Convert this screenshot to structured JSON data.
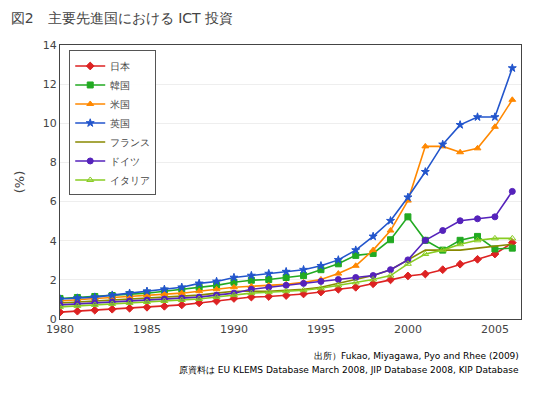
{
  "chart_data": {
    "type": "line",
    "title": "図2　主要先進国における ICT 投資",
    "ylabel": "(%)",
    "annotations": [
      "出所）Fukao, Miyagawa, Pyo and Rhee (2009)",
      "原資料は EU KLEMS Database March 2008, JIP Database 2008, KIP Database"
    ],
    "x": [
      1980,
      1981,
      1982,
      1983,
      1984,
      1985,
      1986,
      1987,
      1988,
      1989,
      1990,
      1991,
      1992,
      1993,
      1994,
      1995,
      1996,
      1997,
      1998,
      1999,
      2000,
      2001,
      2002,
      2003,
      2004,
      2005,
      2006
    ],
    "xlim": [
      1980,
      2006.5
    ],
    "xticks": [
      1980,
      1985,
      1990,
      1995,
      2000,
      2005
    ],
    "ylim": [
      0,
      14
    ],
    "yticks": [
      0,
      2,
      4,
      6,
      8,
      10,
      12,
      14
    ],
    "grid": "y",
    "legend": "upper left",
    "series": [
      {
        "name": "日本",
        "color": "#dd2222",
        "marker": "diamond",
        "line_style": "solid",
        "values": [
          0.35,
          0.4,
          0.45,
          0.5,
          0.55,
          0.6,
          0.65,
          0.72,
          0.82,
          0.92,
          1.05,
          1.12,
          1.15,
          1.2,
          1.28,
          1.38,
          1.52,
          1.62,
          1.8,
          2.0,
          2.2,
          2.3,
          2.52,
          2.8,
          3.05,
          3.32,
          3.9
        ]
      },
      {
        "name": "韓国",
        "color": "#22aa22",
        "marker": "square",
        "line_style": "solid",
        "values": [
          1.05,
          1.1,
          1.15,
          1.2,
          1.25,
          1.32,
          1.42,
          1.52,
          1.62,
          1.72,
          1.88,
          1.98,
          2.02,
          2.12,
          2.22,
          2.52,
          2.82,
          3.25,
          3.35,
          4.05,
          5.22,
          4.02,
          3.52,
          4.02,
          4.22,
          3.58,
          3.62
        ]
      },
      {
        "name": "米国",
        "color": "#ff8800",
        "marker": "triangle-up",
        "line_style": "solid",
        "values": [
          0.92,
          1.0,
          1.05,
          1.1,
          1.15,
          1.22,
          1.27,
          1.32,
          1.42,
          1.52,
          1.62,
          1.67,
          1.72,
          1.77,
          1.87,
          2.02,
          2.32,
          2.72,
          3.52,
          4.52,
          6.05,
          8.82,
          8.82,
          8.52,
          8.72,
          9.82,
          11.2
        ]
      },
      {
        "name": "英国",
        "color": "#2255cc",
        "marker": "star",
        "line_style": "solid",
        "values": [
          1.02,
          1.07,
          1.12,
          1.22,
          1.32,
          1.42,
          1.52,
          1.62,
          1.82,
          1.92,
          2.12,
          2.22,
          2.32,
          2.42,
          2.52,
          2.72,
          3.02,
          3.52,
          4.22,
          5.02,
          6.22,
          7.52,
          8.92,
          9.92,
          10.32,
          10.32,
          12.82
        ]
      },
      {
        "name": "フランス",
        "color": "#888800",
        "marker": "none",
        "line_style": "solid",
        "values": [
          0.82,
          0.87,
          0.92,
          0.97,
          1.02,
          1.07,
          1.12,
          1.17,
          1.22,
          1.32,
          1.42,
          1.42,
          1.42,
          1.47,
          1.52,
          1.62,
          1.82,
          2.02,
          2.22,
          2.52,
          3.02,
          3.52,
          3.52,
          3.52,
          3.62,
          3.72,
          3.82
        ]
      },
      {
        "name": "ドイツ",
        "color": "#5522bb",
        "marker": "circle",
        "line_style": "solid",
        "values": [
          0.72,
          0.77,
          0.82,
          0.87,
          0.92,
          0.97,
          1.02,
          1.07,
          1.12,
          1.22,
          1.32,
          1.52,
          1.62,
          1.72,
          1.82,
          1.92,
          2.02,
          2.12,
          2.22,
          2.52,
          3.02,
          4.02,
          4.52,
          5.02,
          5.12,
          5.22,
          6.52
        ]
      },
      {
        "name": "イタリア",
        "color": "#88cc22",
        "marker": "triangle-up-open",
        "line_style": "solid",
        "values": [
          0.62,
          0.67,
          0.72,
          0.77,
          0.82,
          0.87,
          0.92,
          0.97,
          1.02,
          1.12,
          1.22,
          1.32,
          1.37,
          1.42,
          1.47,
          1.57,
          1.72,
          1.87,
          2.02,
          2.22,
          2.82,
          3.32,
          3.52,
          3.82,
          4.02,
          4.12,
          4.12
        ]
      }
    ]
  }
}
